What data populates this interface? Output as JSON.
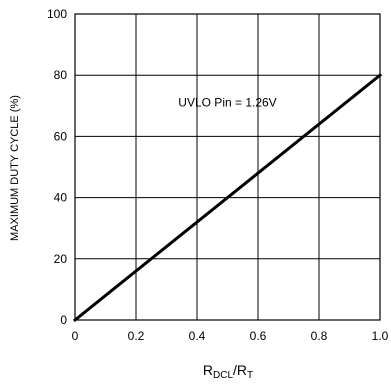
{
  "chart_data": {
    "type": "line",
    "title": "",
    "ylabel": "MAXIMUM DUTY CYCLE (%)",
    "xlabel": {
      "main": "R",
      "sub1": "DCL",
      "mid": "/R",
      "sub2": "T"
    },
    "xlim": [
      0,
      1.0
    ],
    "ylim": [
      0,
      100
    ],
    "grid": true,
    "x_ticks": [
      0,
      0.2,
      0.4,
      0.6,
      0.8,
      1.0
    ],
    "x_tick_labels": [
      "0",
      "0.2",
      "0.4",
      "0.6",
      "0.8",
      "1.0"
    ],
    "y_ticks": [
      0,
      20,
      40,
      60,
      80,
      100
    ],
    "y_tick_labels": [
      "0",
      "20",
      "40",
      "60",
      "80",
      "100"
    ],
    "series": [
      {
        "name": "",
        "x": [
          0,
          1.0
        ],
        "y": [
          0,
          80
        ]
      }
    ],
    "annotations": [
      {
        "text": "UVLO Pin = 1.26V",
        "x": 0.5,
        "y": 71
      }
    ],
    "colors": {
      "line": "#000000",
      "grid": "#000000"
    }
  }
}
